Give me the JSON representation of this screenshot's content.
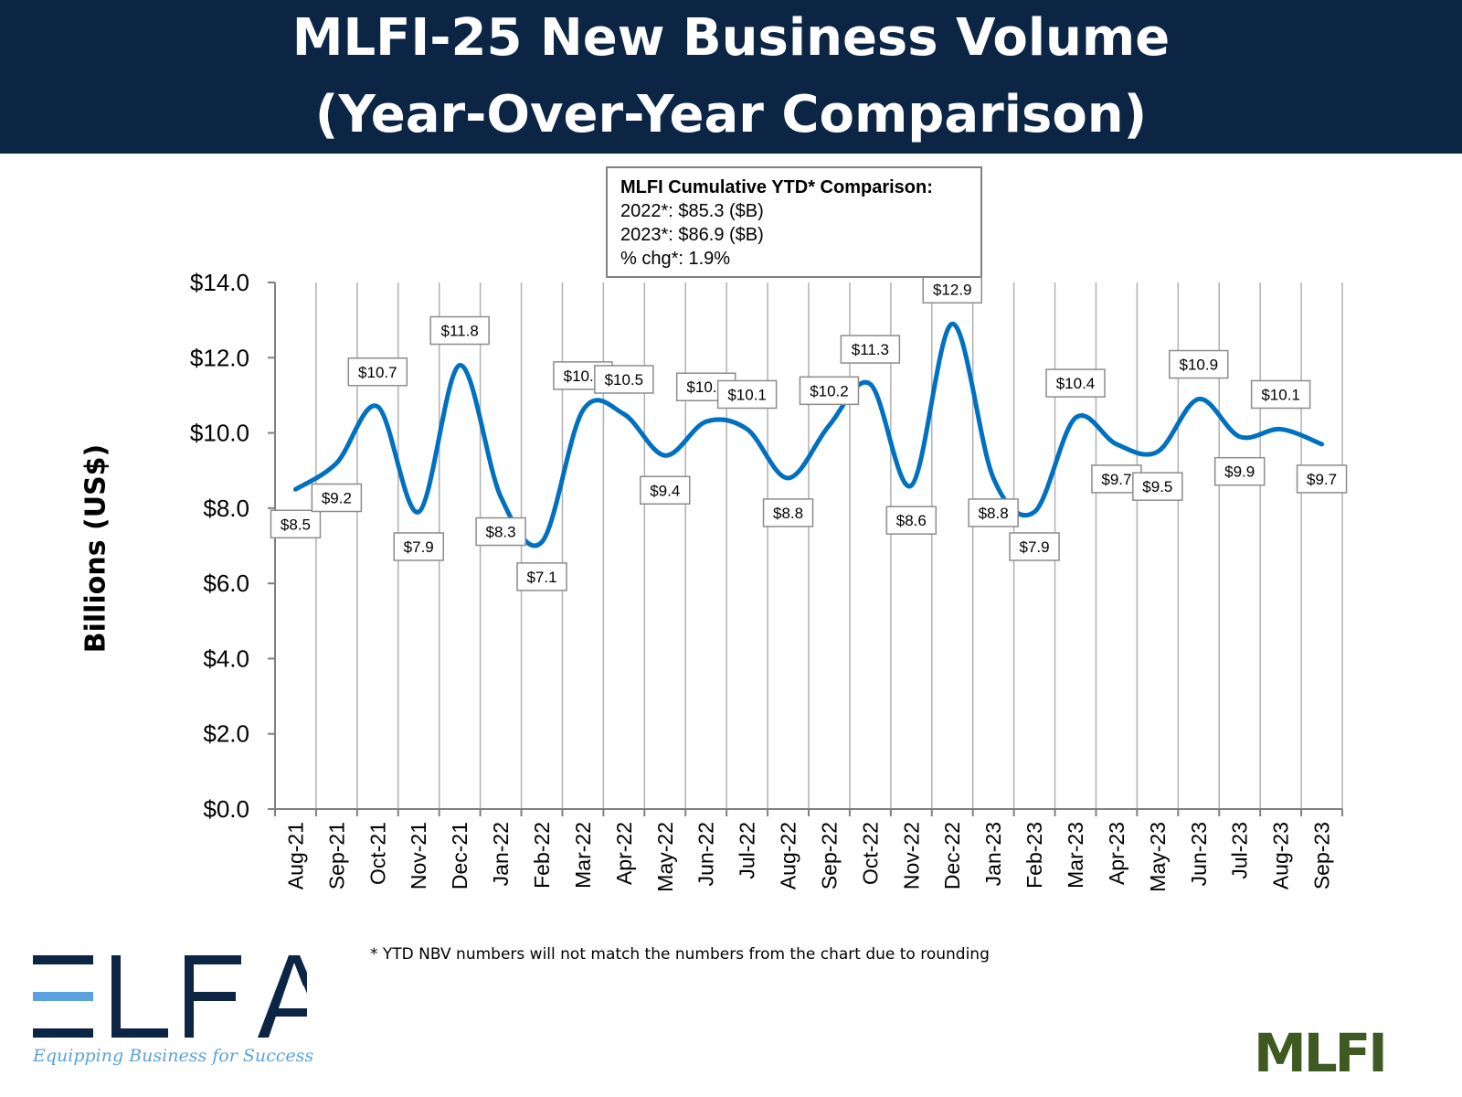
{
  "header": {
    "title_line1": "MLFI-25 New Business Volume",
    "title_line2": "(Year-Over-Year Comparison)",
    "background_color": "#0c2545"
  },
  "ytd_box": {
    "heading": "MLFI Cumulative YTD* Comparison:",
    "line1": "2022*: $85.3 ($B)",
    "line2": "2023*: $86.9 ($B)",
    "line3": "% chg*:  1.9%"
  },
  "footnote": "*  YTD NBV numbers will not match the numbers from the chart due to rounding",
  "logos": {
    "elfa": "ELFA",
    "elfa_tagline": "Equipping Business for Success",
    "mlfi": "MLFI"
  },
  "chart_data": {
    "type": "line",
    "title": "",
    "xlabel": "",
    "ylabel": "Billions (US$)",
    "ylim": [
      0,
      14
    ],
    "yticks": [
      "$0.0",
      "$2.0",
      "$4.0",
      "$6.0",
      "$8.0",
      "$10.0",
      "$12.0",
      "$14.0"
    ],
    "ytick_values": [
      0,
      2,
      4,
      6,
      8,
      10,
      12,
      14
    ],
    "grid": "vertical",
    "smooth": true,
    "line_color": "#0070c0",
    "categories": [
      "Aug-21",
      "Sep-21",
      "Oct-21",
      "Nov-21",
      "Dec-21",
      "Jan-22",
      "Feb-22",
      "Mar-22",
      "Apr-22",
      "May-22",
      "Jun-22",
      "Jul-22",
      "Aug-22",
      "Sep-22",
      "Oct-22",
      "Nov-22",
      "Dec-22",
      "Jan-23",
      "Feb-23",
      "Mar-23",
      "Apr-23",
      "May-23",
      "Jun-23",
      "Jul-23",
      "Aug-23",
      "Sep-23"
    ],
    "values": [
      8.5,
      9.2,
      10.7,
      7.9,
      11.8,
      8.3,
      7.1,
      10.6,
      10.5,
      9.4,
      10.3,
      10.1,
      8.8,
      10.2,
      11.3,
      8.6,
      12.9,
      8.8,
      7.9,
      10.4,
      9.7,
      9.5,
      10.9,
      9.9,
      10.1,
      9.7
    ],
    "data_labels": [
      "$8.5",
      "$9.2",
      "$10.7",
      "$7.9",
      "$11.8",
      "$8.3",
      "$7.1",
      "$10.6",
      "$10.5",
      "$9.4",
      "$10.3",
      "$10.1",
      "$8.8",
      "$10.2",
      "$11.3",
      "$8.6",
      "$12.9",
      "$8.8",
      "$7.9",
      "$10.4",
      "$9.7",
      "$9.5",
      "$10.9",
      "$9.9",
      "$10.1",
      "$9.7"
    ]
  }
}
